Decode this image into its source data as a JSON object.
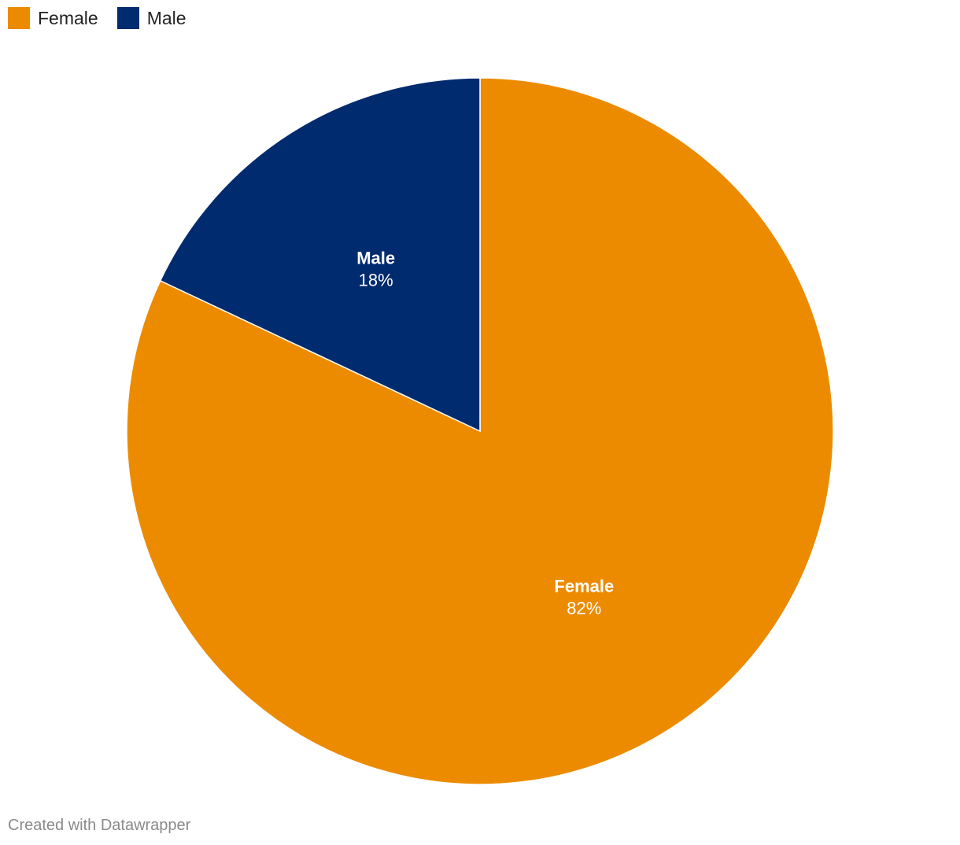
{
  "chart_data": {
    "type": "pie",
    "title": "",
    "slices": [
      {
        "name": "Female",
        "value": 82,
        "label": "82%",
        "color": "#ec8b00"
      },
      {
        "name": "Male",
        "value": 18,
        "label": "18%",
        "color": "#002b6e"
      }
    ],
    "legend_position": "top-left",
    "start_angle_deg": 0,
    "direction": "clockwise"
  },
  "legend": {
    "items": [
      {
        "label": "Female",
        "color": "#ec8b00"
      },
      {
        "label": "Male",
        "color": "#002b6e"
      }
    ]
  },
  "footer": {
    "credit": "Created with Datawrapper"
  }
}
